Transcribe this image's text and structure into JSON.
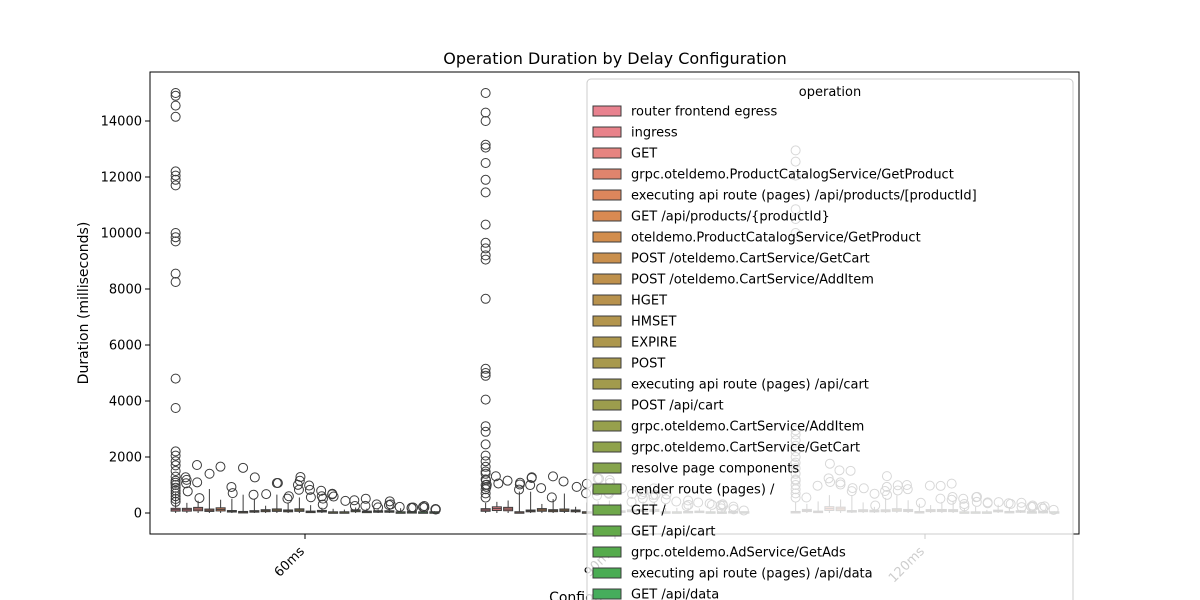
{
  "chart_data": {
    "type": "box",
    "title": "Operation Duration by Delay Configuration",
    "xlabel": "Configu",
    "ylabel": "Duration (milliseconds)",
    "ylim": [
      -750,
      15500
    ],
    "yticks": [
      0,
      2000,
      4000,
      6000,
      8000,
      10000,
      12000,
      14000
    ],
    "categories": [
      "60ms",
      "90ms",
      "120ms"
    ],
    "legend": {
      "title": "operation",
      "placement": "top-right",
      "entries": [
        {
          "name": "router frontend egress",
          "color": "#e8828f"
        },
        {
          "name": "ingress",
          "color": "#e8828a"
        },
        {
          "name": "GET",
          "color": "#e68480"
        },
        {
          "name": "grpc.oteldemo.ProductCatalogService/GetProduct",
          "color": "#e0846d"
        },
        {
          "name": "executing api route (pages) /api/products/[productId]",
          "color": "#dd865c"
        },
        {
          "name": "GET /api/products/{productId}",
          "color": "#d98a52"
        },
        {
          "name": "oteldemo.ProductCatalogService/GetProduct",
          "color": "#d28d4c"
        },
        {
          "name": "POST /oteldemo.CartService/GetCart",
          "color": "#c98f4c"
        },
        {
          "name": "POST /oteldemo.CartService/AddItem",
          "color": "#bf914c"
        },
        {
          "name": "HGET",
          "color": "#b8924d"
        },
        {
          "name": "HMSET",
          "color": "#b3954d"
        },
        {
          "name": "EXPIRE",
          "color": "#ad974d"
        },
        {
          "name": "POST",
          "color": "#a8994d"
        },
        {
          "name": "executing api route (pages) /api/cart",
          "color": "#a29b4d"
        },
        {
          "name": "POST /api/cart",
          "color": "#9c9d4d"
        },
        {
          "name": "grpc.oteldemo.CartService/AddItem",
          "color": "#97a04c"
        },
        {
          "name": "grpc.oteldemo.CartService/GetCart",
          "color": "#8fa24b"
        },
        {
          "name": "resolve page components",
          "color": "#86a44c"
        },
        {
          "name": "render route (pages) /",
          "color": "#7ba64a"
        },
        {
          "name": "GET /",
          "color": "#6fa84b"
        },
        {
          "name": "GET /api/cart",
          "color": "#63aa4a"
        },
        {
          "name": "grpc.oteldemo.AdService/GetAds",
          "color": "#55ab4c"
        },
        {
          "name": "executing api route (pages) /api/data",
          "color": "#4aac53"
        },
        {
          "name": "GET /api/data",
          "color": "#46ad5c"
        }
      ]
    },
    "outlier_columns": [
      {
        "category": "60ms",
        "values": [
          15000,
          14900,
          14550,
          14150,
          12200,
          12050,
          11900,
          11700,
          10000,
          9850,
          9700,
          8550,
          8250,
          4800,
          3750,
          2200,
          2050,
          1850,
          1700,
          1500,
          1300,
          1150,
          1000,
          900,
          800,
          700,
          600,
          500,
          400
        ]
      },
      {
        "category": "90ms",
        "values": [
          15000,
          14300,
          14000,
          13150,
          13050,
          12500,
          11900,
          11450,
          10300,
          9650,
          9450,
          9200,
          9050,
          7650,
          5150,
          5000,
          4900,
          4050,
          3100,
          2900,
          2450,
          2050,
          1850,
          1650,
          1400,
          1200,
          1000,
          850,
          700,
          550
        ]
      },
      {
        "category": "120ms",
        "values": [
          12950,
          12550,
          12050,
          10850,
          10500,
          10000,
          2950,
          2800,
          2600,
          2400,
          2200,
          2000,
          1800,
          1600,
          1400,
          1200,
          1000,
          850,
          700,
          550
        ]
      }
    ]
  }
}
